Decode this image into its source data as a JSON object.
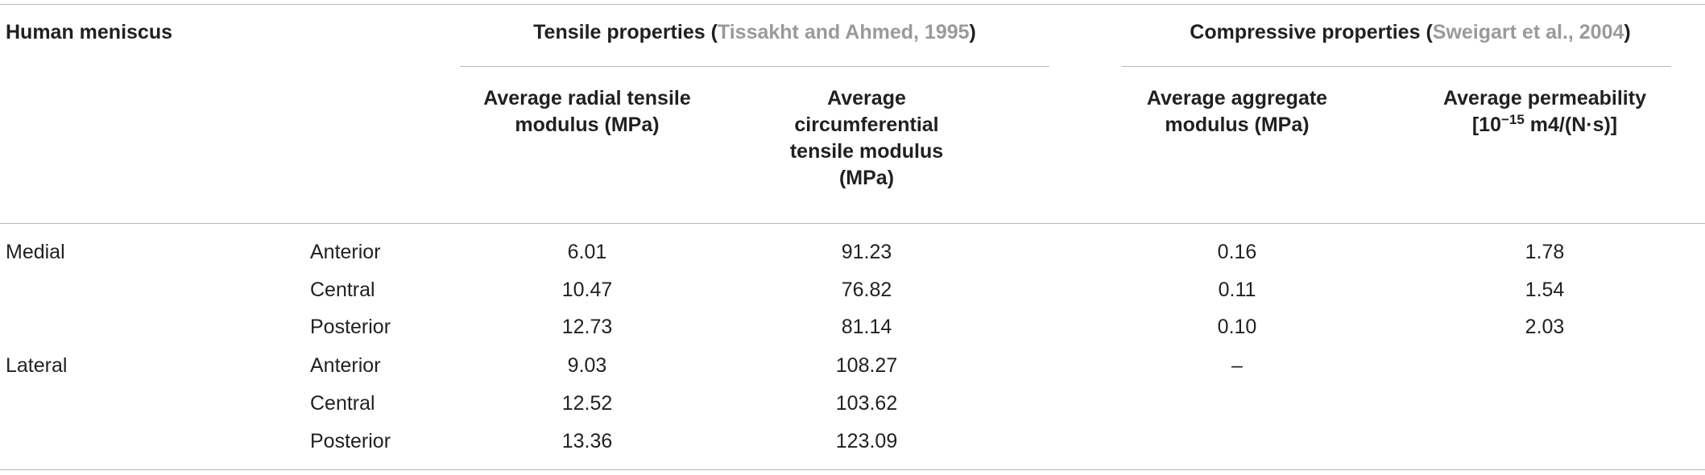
{
  "table": {
    "stub_header": "Human meniscus",
    "groups": [
      {
        "parts": [
          "Tensile properties (",
          "Tissakht and Ahmed, 1995",
          ")"
        ]
      },
      {
        "parts": [
          "Compressive properties (",
          "Sweigart et al., 2004",
          ")"
        ]
      }
    ],
    "columns": [
      [
        "Average radial tensile modulus (MPa)"
      ],
      [
        "Average circumferential tensile modulus (MPa)"
      ],
      [
        "Average aggregate modulus (MPa)"
      ],
      [
        "Average permeability [10",
        "−15",
        " m4/(N·s)]"
      ]
    ],
    "rows": [
      [
        "Medial",
        "Anterior",
        "6.01",
        "91.23",
        "0.16",
        "1.78"
      ],
      [
        null,
        "Central",
        "10.47",
        "76.82",
        "0.11",
        "1.54"
      ],
      [
        null,
        "Posterior",
        "12.73",
        "81.14",
        "0.10",
        "2.03"
      ],
      [
        "Lateral",
        "Anterior",
        "9.03",
        "108.27",
        "–",
        null
      ],
      [
        null,
        "Central",
        "12.52",
        "103.62",
        null,
        null
      ],
      [
        null,
        "Posterior",
        "13.36",
        "123.09",
        null,
        null
      ]
    ]
  }
}
